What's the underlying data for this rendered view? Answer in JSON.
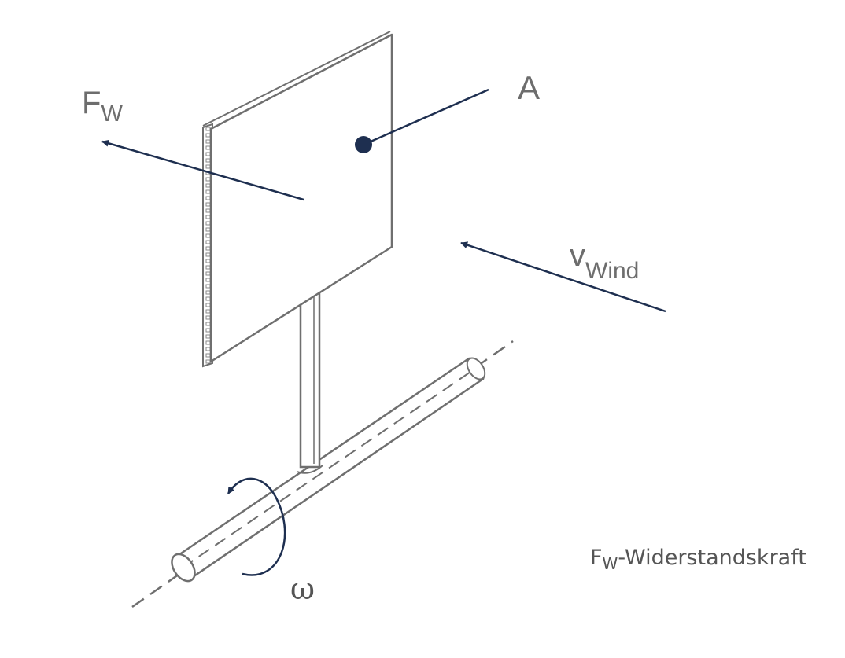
{
  "labels": {
    "force_main": "F",
    "force_sub": "W",
    "area": "A",
    "wind_main": "v",
    "wind_sub": "Wind",
    "omega": "ω"
  },
  "legend": {
    "main": "F",
    "sub": "W",
    "text": "-Widerstandskraft"
  },
  "colors": {
    "arrow": "#1e2f50",
    "outline": "#6f6f6f",
    "text": "#6d6d6d"
  }
}
